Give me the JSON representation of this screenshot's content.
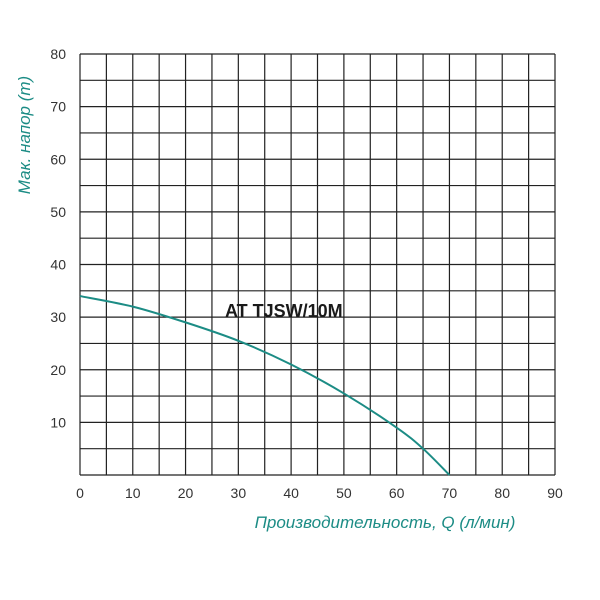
{
  "chart_data": {
    "type": "line",
    "title": "",
    "xlabel": "Производительность, Q (л/мин)",
    "ylabel": "Мак. напор (m)",
    "xlim": [
      0,
      90
    ],
    "ylim": [
      0,
      80
    ],
    "x_ticks": [
      "0",
      "10",
      "20",
      "30",
      "40",
      "50",
      "60",
      "70",
      "80",
      "90"
    ],
    "y_ticks": [
      "10",
      "20",
      "30",
      "40",
      "50",
      "60",
      "70",
      "80"
    ],
    "grid": true,
    "series": [
      {
        "name": "AT TJSW/10M",
        "color": "#1c8c85",
        "points": [
          [
            0,
            34
          ],
          [
            10,
            32
          ],
          [
            20,
            29
          ],
          [
            30,
            25.5
          ],
          [
            40,
            21
          ],
          [
            50,
            15.5
          ],
          [
            60,
            9
          ],
          [
            65,
            5
          ],
          [
            70,
            0
          ]
        ]
      }
    ]
  },
  "colors": {
    "axis_title": "#1c8c85",
    "grid": "#222222",
    "line": "#1c8c85"
  }
}
